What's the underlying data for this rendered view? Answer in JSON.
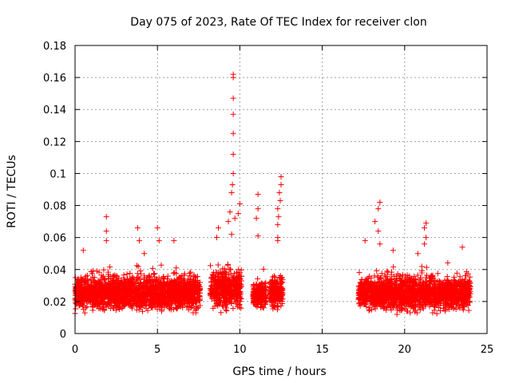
{
  "chart_data": {
    "type": "scatter",
    "title": "Day 075 of 2023, Rate Of TEC Index for receiver clon",
    "xlabel": "GPS time / hours",
    "ylabel": "ROTI / TECUs",
    "xlim": [
      0,
      25
    ],
    "ylim": [
      0,
      0.18
    ],
    "xticks": [
      0,
      5,
      10,
      15,
      20,
      25
    ],
    "xtick_labels": [
      "0",
      "5",
      "10",
      "15",
      "20",
      "25"
    ],
    "yticks": [
      0,
      0.02,
      0.04,
      0.06,
      0.08,
      0.1,
      0.12,
      0.14,
      0.16,
      0.18
    ],
    "ytick_labels": [
      "0",
      "0.02",
      "0.04",
      "0.06",
      "0.08",
      "0.1",
      "0.12",
      "0.14",
      "0.16",
      "0.18"
    ],
    "grid": true,
    "marker": "+",
    "color": "#ff0000",
    "segments": [
      {
        "x_start": 0.0,
        "x_end": 6.8,
        "y_min": 0.005,
        "y_max": 0.045
      },
      {
        "x_start": 6.8,
        "x_end": 7.6,
        "y_min": 0.005,
        "y_max": 0.045
      },
      {
        "x_start": 8.2,
        "x_end": 10.1,
        "y_min": 0.006,
        "y_max": 0.05
      },
      {
        "x_start": 10.8,
        "x_end": 11.6,
        "y_min": 0.007,
        "y_max": 0.04
      },
      {
        "x_start": 11.8,
        "x_end": 12.6,
        "y_min": 0.007,
        "y_max": 0.045
      },
      {
        "x_start": 17.2,
        "x_end": 24.0,
        "y_min": 0.005,
        "y_max": 0.045
      }
    ],
    "highlights": [
      {
        "x": 9.6,
        "y": 0.162
      },
      {
        "x": 9.6,
        "y": 0.16
      },
      {
        "x": 9.6,
        "y": 0.147
      },
      {
        "x": 9.6,
        "y": 0.137
      },
      {
        "x": 9.6,
        "y": 0.125
      },
      {
        "x": 9.6,
        "y": 0.112
      },
      {
        "x": 9.6,
        "y": 0.1
      },
      {
        "x": 9.55,
        "y": 0.093
      },
      {
        "x": 9.5,
        "y": 0.088
      },
      {
        "x": 9.4,
        "y": 0.076
      },
      {
        "x": 9.7,
        "y": 0.072
      },
      {
        "x": 10.0,
        "y": 0.081
      },
      {
        "x": 9.9,
        "y": 0.075
      },
      {
        "x": 9.3,
        "y": 0.07
      },
      {
        "x": 9.5,
        "y": 0.062
      },
      {
        "x": 8.7,
        "y": 0.066
      },
      {
        "x": 8.6,
        "y": 0.06
      },
      {
        "x": 11.1,
        "y": 0.087
      },
      {
        "x": 11.1,
        "y": 0.078
      },
      {
        "x": 11.0,
        "y": 0.072
      },
      {
        "x": 11.1,
        "y": 0.061
      },
      {
        "x": 12.5,
        "y": 0.098
      },
      {
        "x": 12.5,
        "y": 0.093
      },
      {
        "x": 12.4,
        "y": 0.088
      },
      {
        "x": 12.45,
        "y": 0.083
      },
      {
        "x": 12.3,
        "y": 0.078
      },
      {
        "x": 12.35,
        "y": 0.073
      },
      {
        "x": 12.3,
        "y": 0.068
      },
      {
        "x": 12.3,
        "y": 0.06
      },
      {
        "x": 12.3,
        "y": 0.058
      },
      {
        "x": 1.9,
        "y": 0.073
      },
      {
        "x": 1.9,
        "y": 0.064
      },
      {
        "x": 1.9,
        "y": 0.058
      },
      {
        "x": 3.8,
        "y": 0.066
      },
      {
        "x": 3.9,
        "y": 0.058
      },
      {
        "x": 5.0,
        "y": 0.066
      },
      {
        "x": 5.1,
        "y": 0.058
      },
      {
        "x": 4.2,
        "y": 0.05
      },
      {
        "x": 6.0,
        "y": 0.058
      },
      {
        "x": 0.5,
        "y": 0.052
      },
      {
        "x": 18.5,
        "y": 0.082
      },
      {
        "x": 18.4,
        "y": 0.078
      },
      {
        "x": 18.2,
        "y": 0.07
      },
      {
        "x": 18.4,
        "y": 0.064
      },
      {
        "x": 17.6,
        "y": 0.058
      },
      {
        "x": 18.5,
        "y": 0.056
      },
      {
        "x": 21.3,
        "y": 0.069
      },
      {
        "x": 21.2,
        "y": 0.066
      },
      {
        "x": 21.3,
        "y": 0.06
      },
      {
        "x": 21.2,
        "y": 0.056
      },
      {
        "x": 20.8,
        "y": 0.05
      },
      {
        "x": 23.5,
        "y": 0.054
      },
      {
        "x": 19.3,
        "y": 0.052
      }
    ]
  }
}
